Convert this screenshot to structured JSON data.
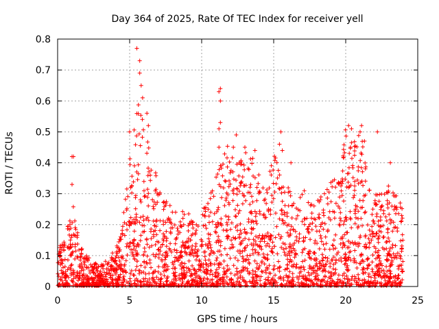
{
  "chart_data": {
    "type": "scatter",
    "title": "Day 364 of 2025, Rate Of TEC Index for receiver yell",
    "xlabel": "GPS time / hours",
    "ylabel": "ROTI / TECUs",
    "xlim": [
      0,
      25
    ],
    "ylim": [
      0,
      0.8
    ],
    "x_ticks": [
      0,
      5,
      10,
      15,
      20,
      25
    ],
    "y_ticks": [
      0,
      0.1,
      0.2,
      0.3,
      0.4,
      0.5,
      0.6,
      0.7,
      0.8
    ],
    "x_tick_labels": [
      "0",
      "5",
      "10",
      "15",
      "20",
      "25"
    ],
    "y_tick_labels": [
      "0",
      "0.1",
      "0.2",
      "0.3",
      "0.4",
      "0.5",
      "0.6",
      "0.7",
      "0.8"
    ],
    "grid": true,
    "marker": "+",
    "color": "#ff0000",
    "envelope_hours": [
      0,
      0.5,
      1,
      1.5,
      2,
      2.5,
      3,
      3.5,
      4,
      4.5,
      5,
      5.5,
      6,
      6.5,
      7,
      7.5,
      8,
      8.5,
      9,
      9.5,
      10,
      10.5,
      11,
      11.5,
      12,
      12.5,
      13,
      13.5,
      14,
      14.5,
      15,
      15.5,
      16,
      16.5,
      17,
      17.5,
      18,
      18.5,
      19,
      19.5,
      20,
      20.5,
      21,
      21.5,
      22,
      22.5,
      23,
      23.5,
      24
    ],
    "envelope_roti": [
      0.14,
      0.16,
      0.3,
      0.14,
      0.1,
      0.08,
      0.08,
      0.09,
      0.12,
      0.2,
      0.42,
      0.62,
      0.55,
      0.4,
      0.35,
      0.28,
      0.26,
      0.24,
      0.26,
      0.2,
      0.25,
      0.28,
      0.38,
      0.42,
      0.48,
      0.4,
      0.44,
      0.42,
      0.36,
      0.32,
      0.46,
      0.38,
      0.32,
      0.28,
      0.32,
      0.3,
      0.28,
      0.3,
      0.35,
      0.34,
      0.52,
      0.48,
      0.52,
      0.38,
      0.3,
      0.3,
      0.34,
      0.3,
      0.26
    ],
    "outliers": [
      [
        1.0,
        0.42
      ],
      [
        1.1,
        0.42
      ],
      [
        1.0,
        0.33
      ],
      [
        5.0,
        0.5
      ],
      [
        5.5,
        0.77
      ],
      [
        5.7,
        0.73
      ],
      [
        5.7,
        0.69
      ],
      [
        5.9,
        0.61
      ],
      [
        5.8,
        0.65
      ],
      [
        6.2,
        0.56
      ],
      [
        6.3,
        0.52
      ],
      [
        11.3,
        0.64
      ],
      [
        11.2,
        0.63
      ],
      [
        11.3,
        0.6
      ],
      [
        11.3,
        0.53
      ],
      [
        11.2,
        0.51
      ],
      [
        11.2,
        0.45
      ],
      [
        12.4,
        0.49
      ],
      [
        12.2,
        0.45
      ],
      [
        13.0,
        0.45
      ],
      [
        13.7,
        0.44
      ],
      [
        15.5,
        0.5
      ],
      [
        15.4,
        0.46
      ],
      [
        15.6,
        0.44
      ],
      [
        16.2,
        0.4
      ],
      [
        20.2,
        0.52
      ],
      [
        20.4,
        0.51
      ],
      [
        21.1,
        0.52
      ],
      [
        21.0,
        0.5
      ],
      [
        21.3,
        0.47
      ],
      [
        22.2,
        0.5
      ],
      [
        23.1,
        0.4
      ]
    ]
  }
}
